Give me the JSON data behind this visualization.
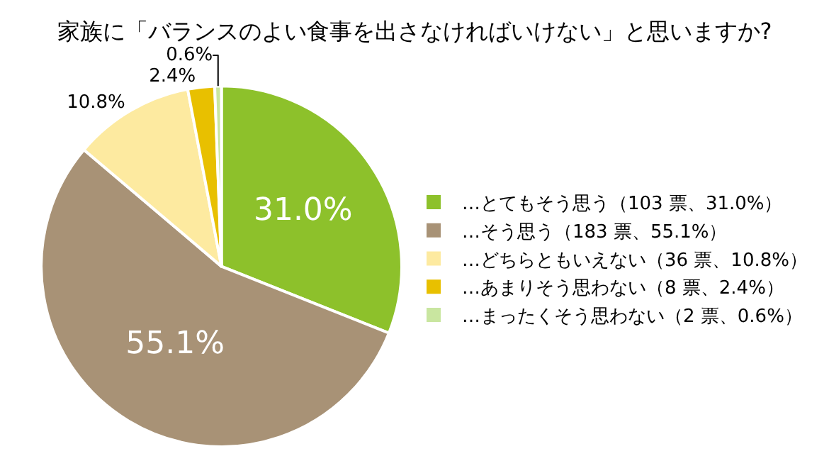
{
  "chart_data": {
    "type": "pie",
    "title": "家族に「バランスのよい食事を出さなければいけない」と思いますか?",
    "categories": [
      "…とてもそう思う（103 票、31.0%）",
      "…そう思う（183 票、55.1%）",
      "…どちらともいえない（36 票、10.8%）",
      "…あまりそう思わない（8 票、2.4%）",
      "…まったくそう思わない（2 票、0.6%）"
    ],
    "values": [
      31.0,
      55.1,
      10.8,
      2.4,
      0.6
    ],
    "colors": [
      "#8dc12b",
      "#a89276",
      "#fdeaa0",
      "#e8c000",
      "#c9e6a0"
    ],
    "value_labels": [
      "31.0%",
      "55.1%",
      "10.8%",
      "2.4%",
      "0.6%"
    ],
    "legend": "right"
  }
}
